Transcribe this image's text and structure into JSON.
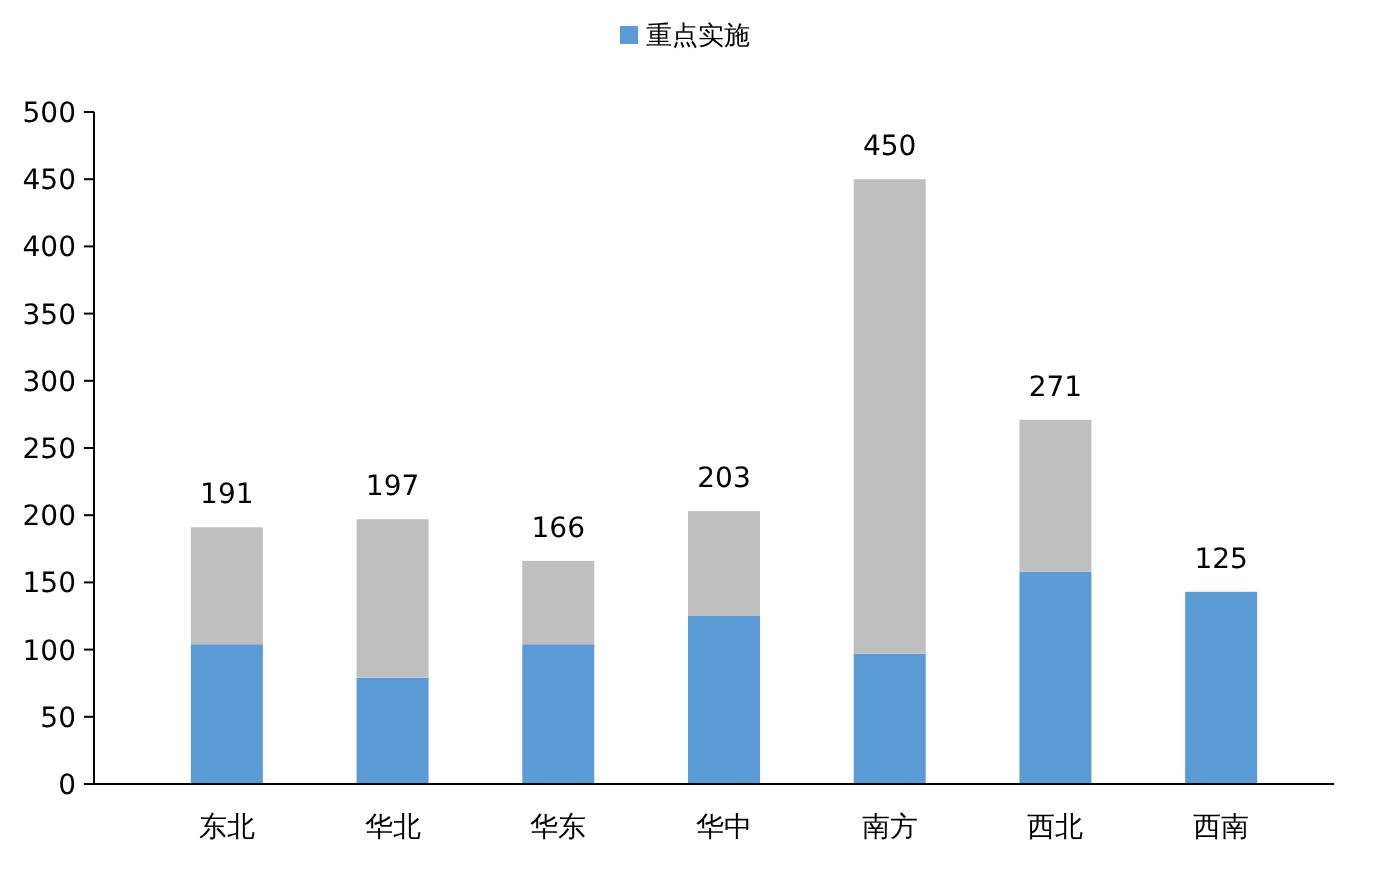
{
  "chart_data": {
    "type": "bar",
    "stacked": true,
    "categories": [
      "东北",
      "华北",
      "华东",
      "华中",
      "南方",
      "西北",
      "西南"
    ],
    "series": [
      {
        "name": "重点实施",
        "color": "#5b9bd5",
        "values": [
          104,
          79,
          104,
          125,
          97,
          158,
          143
        ]
      },
      {
        "color": "#bfbfbf",
        "values": [
          87,
          118,
          62,
          78,
          353,
          113,
          0
        ]
      }
    ],
    "totals": [
      "191",
      "197",
      "166",
      "203",
      "450",
      "271",
      null
    ],
    "annotations": [
      {
        "text": "125",
        "x": "西南",
        "y": 143
      }
    ],
    "ylim": [
      0,
      500
    ],
    "yticks": [
      0,
      50,
      100,
      150,
      200,
      250,
      300,
      350,
      400,
      450,
      500
    ],
    "grid": false,
    "legend": "top"
  }
}
